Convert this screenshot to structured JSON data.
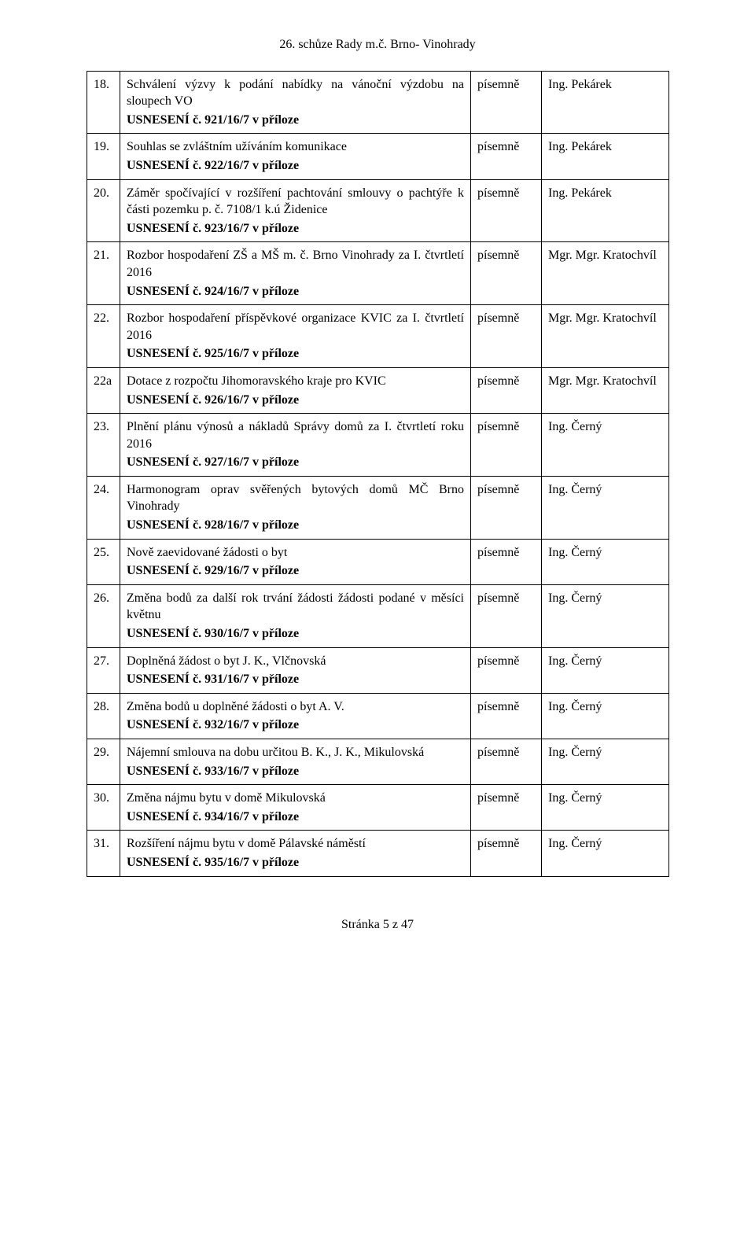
{
  "header": "26. schůze Rady m.č. Brno- Vinohrady",
  "footer": "Stránka 5 z 47",
  "table": {
    "rows": [
      {
        "num": "18.",
        "desc": "Schválení výzvy k podání nabídky na vánoční výzdobu na sloupech VO",
        "desc_justify": true,
        "resolution": "USNESENÍ č. 921/16/7 v příloze",
        "form": "písemně",
        "person": "Ing. Pekárek"
      },
      {
        "num": "19.",
        "desc": "Souhlas se zvláštním užíváním komunikace",
        "desc_justify": false,
        "resolution": "USNESENÍ č. 922/16/7 v příloze",
        "form": "písemně",
        "person": "Ing. Pekárek"
      },
      {
        "num": "20.",
        "desc": "Záměr spočívající v rozšíření pachtování smlouvy o pachtýře k části pozemku p. č. 7108/1 k.ú Židenice",
        "desc_justify": true,
        "resolution": "USNESENÍ č. 923/16/7 v příloze",
        "form": "písemně",
        "person": "Ing. Pekárek"
      },
      {
        "num": "21.",
        "desc": "Rozbor hospodaření ZŠ a MŠ m. č. Brno Vinohrady za I. čtvrtletí 2016",
        "desc_justify": true,
        "resolution": "USNESENÍ č. 924/16/7 v příloze",
        "form": "písemně",
        "person": "Mgr. Mgr. Kratochvíl"
      },
      {
        "num": "22.",
        "desc": "Rozbor hospodaření příspěvkové organizace KVIC za I. čtvrtletí 2016",
        "desc_justify": true,
        "resolution": "USNESENÍ č. 925/16/7 v příloze",
        "form": "písemně",
        "person": "Mgr. Mgr. Kratochvíl"
      },
      {
        "num": "22a",
        "desc": "Dotace z rozpočtu Jihomoravského kraje pro KVIC",
        "desc_justify": false,
        "resolution": "USNESENÍ č. 926/16/7 v příloze",
        "form": "písemně",
        "person": "Mgr. Mgr. Kratochvíl"
      },
      {
        "num": "23.",
        "desc": "Plnění plánu výnosů a nákladů Správy domů za I. čtvrtletí roku 2016",
        "desc_justify": true,
        "resolution": "USNESENÍ č. 927/16/7 v příloze",
        "form": "písemně",
        "person": "Ing. Černý"
      },
      {
        "num": "24.",
        "desc": "Harmonogram oprav svěřených bytových domů MČ Brno Vinohrady",
        "desc_justify": true,
        "resolution": "USNESENÍ č. 928/16/7 v příloze",
        "form": "písemně",
        "person": "Ing. Černý"
      },
      {
        "num": "25.",
        "desc": "Nově zaevidované žádosti o byt",
        "desc_justify": false,
        "resolution": "USNESENÍ č. 929/16/7 v příloze",
        "form": "písemně",
        "person": "Ing. Černý"
      },
      {
        "num": "26.",
        "desc": "Změna bodů za další rok trvání žádosti žádosti podané v měsíci květnu",
        "desc_justify": true,
        "resolution": "USNESENÍ č. 930/16/7 v příloze",
        "form": "písemně",
        "person": "Ing. Černý"
      },
      {
        "num": "27.",
        "desc": "Doplněná žádost o byt   J. K., Vlčnovská",
        "desc_justify": false,
        "resolution": "USNESENÍ č. 931/16/7 v příloze",
        "form": "písemně",
        "person": "Ing. Černý"
      },
      {
        "num": "28.",
        "desc": "Změna bodů  u doplněné žádosti o byt A. V.",
        "desc_justify": false,
        "resolution": "USNESENÍ č. 932/16/7 v příloze",
        "form": "písemně",
        "person": "Ing. Černý"
      },
      {
        "num": "29.",
        "desc": "Nájemní smlouva na dobu určitou   B. K., J. K., Mikulovská",
        "desc_justify": true,
        "resolution": "USNESENÍ č. 933/16/7 v příloze",
        "form": "písemně",
        "person": "Ing. Černý"
      },
      {
        "num": "30.",
        "desc": "Změna nájmu bytu v domě Mikulovská",
        "desc_justify": false,
        "resolution": "USNESENÍ č. 934/16/7 v příloze",
        "form": "písemně",
        "person": "Ing. Černý"
      },
      {
        "num": "31.",
        "desc": "Rozšíření nájmu bytu v domě Pálavské náměstí",
        "desc_justify": false,
        "resolution": "USNESENÍ č. 935/16/7 v příloze",
        "form": "písemně",
        "person": "Ing. Černý"
      }
    ]
  }
}
